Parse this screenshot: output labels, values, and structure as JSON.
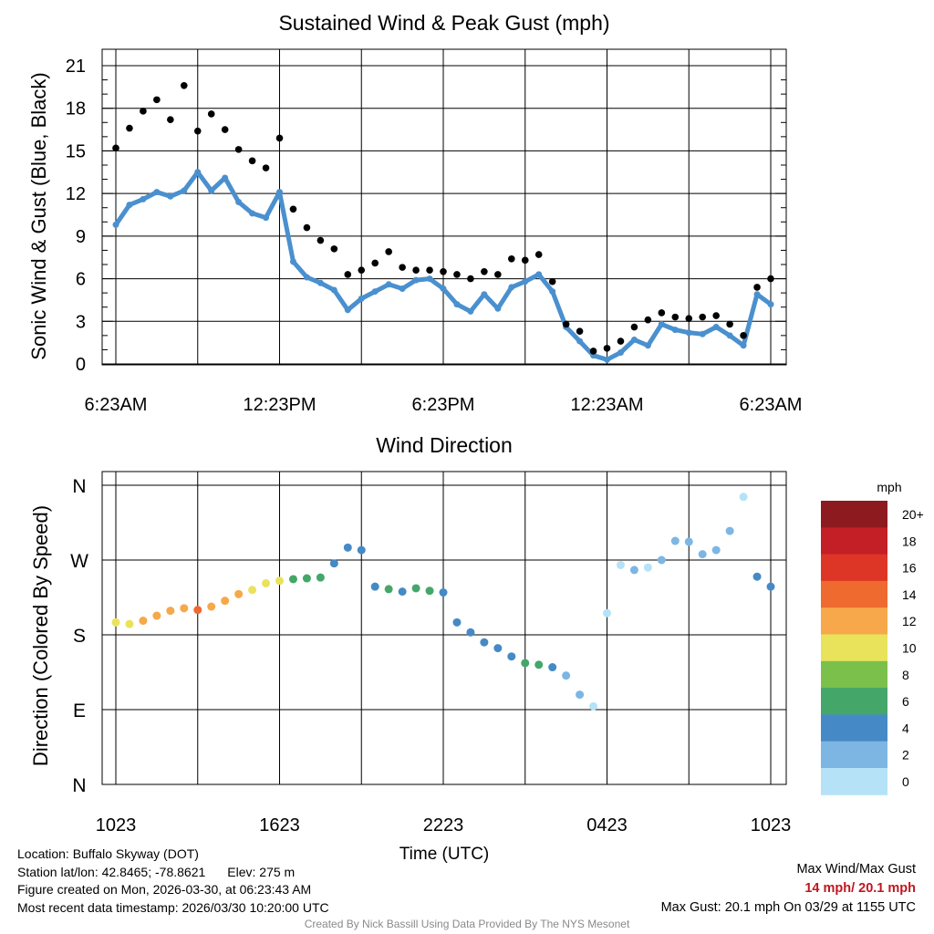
{
  "chart_data": [
    {
      "type": "scatter",
      "title": "Sustained Wind & Peak Gust (mph)",
      "ylabel": "Sonic Wind & Gust (Blue, Black)",
      "xlabel": "",
      "x_unit": "hours since 6:23AM",
      "xlim": [
        0,
        24
      ],
      "ylim": [
        0,
        21
      ],
      "x_ticks": [
        0,
        6,
        12,
        18,
        24
      ],
      "x_tick_labels": [
        "6:23AM",
        "12:23PM",
        "6:23PM",
        "12:23AM",
        "6:23AM"
      ],
      "y_ticks": [
        0,
        3,
        6,
        9,
        12,
        15,
        18,
        21
      ],
      "y_tick_labels": [
        "0",
        "3",
        "6",
        "9",
        "12",
        "15",
        "18",
        "21"
      ],
      "grid": true,
      "series": [
        {
          "name": "Sustained Wind",
          "color": "#4a90cf",
          "x": [
            0,
            0.5,
            1,
            1.5,
            2,
            2.5,
            3,
            3.5,
            4,
            4.5,
            5,
            5.5,
            6,
            6.5,
            7,
            7.5,
            8,
            8.5,
            9,
            9.5,
            10,
            10.5,
            11,
            11.5,
            12,
            12.5,
            13,
            13.5,
            14,
            14.5,
            15,
            15.5,
            16,
            16.5,
            17,
            17.5,
            18,
            18.5,
            19,
            19.5,
            20,
            20.5,
            21,
            21.5,
            22,
            22.5,
            23,
            23.5,
            24
          ],
          "values": [
            9.8,
            11.2,
            11.6,
            12.1,
            11.8,
            12.2,
            13.5,
            12.2,
            13.1,
            11.4,
            10.6,
            10.3,
            12.1,
            7.2,
            6.1,
            5.7,
            5.2,
            3.8,
            4.6,
            5.1,
            5.6,
            5.3,
            5.9,
            6.0,
            5.3,
            4.2,
            3.7,
            4.9,
            3.9,
            5.4,
            5.8,
            6.3,
            5.1,
            2.6,
            1.6,
            0.6,
            0.3,
            0.8,
            1.7,
            1.3,
            2.8,
            2.4,
            2.2,
            2.1,
            2.6,
            2.0,
            1.3,
            4.9,
            4.2
          ]
        },
        {
          "name": "Peak Gust",
          "color": "#000000",
          "x": [
            0,
            0.5,
            1,
            1.5,
            2,
            2.5,
            3,
            3.5,
            4,
            4.5,
            5,
            5.5,
            6,
            6.5,
            7,
            7.5,
            8,
            8.5,
            9,
            9.5,
            10,
            10.5,
            11,
            11.5,
            12,
            12.5,
            13,
            13.5,
            14,
            14.5,
            15,
            15.5,
            16,
            16.5,
            17,
            17.5,
            18,
            18.5,
            19,
            19.5,
            20,
            20.5,
            21,
            21.5,
            22,
            22.5,
            23,
            23.5,
            24
          ],
          "values": [
            15.2,
            16.6,
            17.8,
            18.6,
            17.2,
            19.6,
            16.4,
            17.6,
            16.5,
            15.1,
            14.3,
            13.8,
            15.9,
            10.9,
            9.6,
            8.7,
            8.1,
            6.3,
            6.6,
            7.1,
            7.9,
            6.8,
            6.6,
            6.6,
            6.5,
            6.3,
            6.0,
            6.5,
            6.3,
            7.4,
            7.3,
            7.7,
            5.8,
            2.8,
            2.3,
            0.9,
            1.1,
            1.6,
            2.6,
            3.1,
            3.6,
            3.3,
            3.2,
            3.3,
            3.4,
            2.8,
            2.0,
            5.4,
            6.0
          ]
        }
      ]
    },
    {
      "type": "scatter",
      "title": "Wind Direction",
      "ylabel": "Direction (Colored By Speed)",
      "xlabel": "Time (UTC)",
      "x_unit": "hours since 1023 UTC",
      "xlim": [
        0,
        24
      ],
      "ylim": [
        0,
        360
      ],
      "x_ticks": [
        0,
        6,
        12,
        18,
        24
      ],
      "x_tick_labels": [
        "1023",
        "1623",
        "2223",
        "0423",
        "1023"
      ],
      "y_ticks": [
        0,
        90,
        180,
        270,
        360
      ],
      "y_tick_labels": [
        "N",
        "E",
        "S",
        "W",
        "N"
      ],
      "grid": true,
      "x": [
        0,
        0.5,
        1,
        1.5,
        2,
        2.5,
        3,
        3.5,
        4,
        4.5,
        5,
        5.5,
        6,
        6.5,
        7,
        7.5,
        8,
        8.5,
        9,
        9.5,
        10,
        10.5,
        11,
        11.5,
        12,
        12.5,
        13,
        13.5,
        14,
        14.5,
        15,
        15.5,
        16,
        16.5,
        17,
        17.5,
        18,
        18.5,
        19,
        19.5,
        20,
        20.5,
        21,
        21.5,
        22,
        22.5,
        23,
        23.5,
        24
      ],
      "direction": [
        195,
        193,
        197,
        203,
        209,
        212,
        210,
        214,
        221,
        229,
        234,
        242,
        245,
        247,
        248,
        249,
        266,
        285,
        282,
        238,
        235,
        232,
        236,
        233,
        231,
        195,
        183,
        171,
        164,
        154,
        146,
        144,
        141,
        131,
        108,
        94,
        206,
        264,
        258,
        261,
        270,
        293,
        292,
        277,
        282,
        305,
        346,
        250,
        238
      ],
      "speed": [
        11,
        11,
        12,
        12,
        13,
        13,
        14,
        13,
        13,
        12,
        11,
        11,
        11,
        7,
        6,
        6,
        5,
        4,
        4,
        5,
        6,
        5,
        6,
        6,
        5,
        4,
        4,
        5,
        4,
        5,
        6,
        6,
        5,
        3,
        2,
        1,
        1,
        1,
        2,
        1,
        3,
        3,
        2,
        2,
        3,
        2,
        1,
        4,
        4
      ],
      "colorbar": {
        "unit": "mph",
        "ticks": [
          "20+",
          "18",
          "16",
          "14",
          "12",
          "10",
          "8",
          "6",
          "4",
          "2",
          "0"
        ],
        "colors": [
          "#8c1a1f",
          "#c41e26",
          "#de3626",
          "#ef6a2f",
          "#f6a84a",
          "#e9e35c",
          "#7ac04b",
          "#45a66a",
          "#458ac6",
          "#7db6e3",
          "#b5e2f6"
        ]
      }
    }
  ],
  "footer": {
    "location": "Location: Buffalo Skyway (DOT)",
    "latlon": "Station lat/lon: 42.8465; -78.8621",
    "elev": "Elev: 275 m",
    "created": "Figure created on Mon, 2026-03-30, at 06:23:43 AM",
    "recent": "Most recent data timestamp: 2026/03/30 10:20:00 UTC",
    "max_label": "Max Wind/Max Gust",
    "max_values": "14 mph/ 20.1 mph",
    "max_gust": "Max Gust: 20.1 mph On 03/29 at 1155 UTC",
    "credit": "Created By Nick Bassill Using Data Provided By The NYS Mesonet"
  }
}
